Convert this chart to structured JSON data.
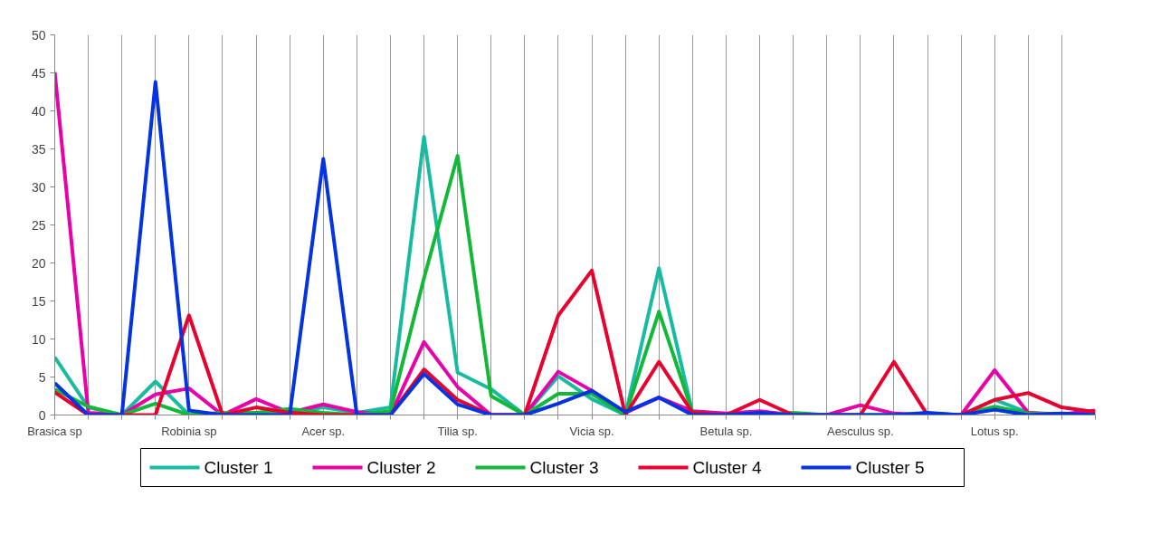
{
  "chart_data": {
    "type": "line",
    "categories": [
      "Brasica sp",
      null,
      null,
      null,
      "Robinia sp",
      null,
      null,
      null,
      "Acer sp.",
      null,
      null,
      null,
      "Tilia sp.",
      null,
      null,
      null,
      "Vicia sp.",
      null,
      null,
      null,
      "Betula sp.",
      null,
      null,
      null,
      "Aesculus sp.",
      null,
      null,
      null,
      "Lotus sp.",
      null,
      null,
      null
    ],
    "series": [
      {
        "name": "Cluster 1",
        "color": "#17bba0",
        "values": [
          7.6,
          1.0,
          0,
          4.4,
          0,
          0,
          0.3,
          0.3,
          1.0,
          0.3,
          1.0,
          36.6,
          5.6,
          3.4,
          0,
          5.1,
          2.1,
          0,
          19.3,
          0.3,
          0,
          0.2,
          0,
          0,
          0,
          0,
          0,
          0,
          2.0,
          0.3,
          0,
          0
        ]
      },
      {
        "name": "Cluster 2",
        "color": "#e800a8",
        "values": [
          45.1,
          0.3,
          0,
          2.7,
          3.5,
          0,
          2.1,
          0.3,
          1.4,
          0.4,
          0,
          9.6,
          3.7,
          0,
          0,
          5.7,
          3.2,
          0.3,
          2.3,
          0.5,
          0.2,
          0.5,
          0,
          0,
          1.3,
          0.2,
          0,
          0,
          5.9,
          0.3,
          0.1,
          0.6
        ]
      },
      {
        "name": "Cluster 3",
        "color": "#14b838",
        "values": [
          3.4,
          1.1,
          0,
          1.5,
          0,
          0.3,
          0.3,
          0.8,
          0.3,
          0,
          0.5,
          18,
          34.1,
          2.5,
          0,
          2.8,
          2.8,
          0,
          13.6,
          0.3,
          0,
          0,
          0.3,
          0,
          0,
          0,
          0.2,
          0,
          1.1,
          0.2,
          0.1,
          0
        ]
      },
      {
        "name": "Cluster 4",
        "color": "#e8002e",
        "values": [
          3.0,
          0,
          0,
          0,
          13.1,
          0,
          1.0,
          0.3,
          0,
          0,
          0,
          6.0,
          2.0,
          0,
          0,
          13.1,
          19.0,
          0,
          7.0,
          0.3,
          0,
          2.0,
          0,
          0,
          0,
          7.0,
          0,
          0,
          2.0,
          2.9,
          1.0,
          0.4
        ]
      },
      {
        "name": "Cluster 5",
        "color": "#0433e2",
        "values": [
          4.2,
          0,
          0,
          43.8,
          0.6,
          0,
          0,
          0,
          33.7,
          0,
          0,
          5.4,
          1.4,
          0,
          0,
          1.5,
          3.2,
          0.4,
          2.3,
          0,
          0,
          0.3,
          0,
          0,
          0,
          0,
          0.3,
          0,
          0.7,
          0,
          0.2,
          0
        ]
      }
    ],
    "ylim": [
      0,
      50
    ],
    "yticks": [
      0,
      5,
      10,
      15,
      20,
      25,
      30,
      35,
      40,
      45,
      50
    ],
    "grid": "x",
    "legend": "bottom",
    "marker": "none",
    "line_style": "solid"
  }
}
